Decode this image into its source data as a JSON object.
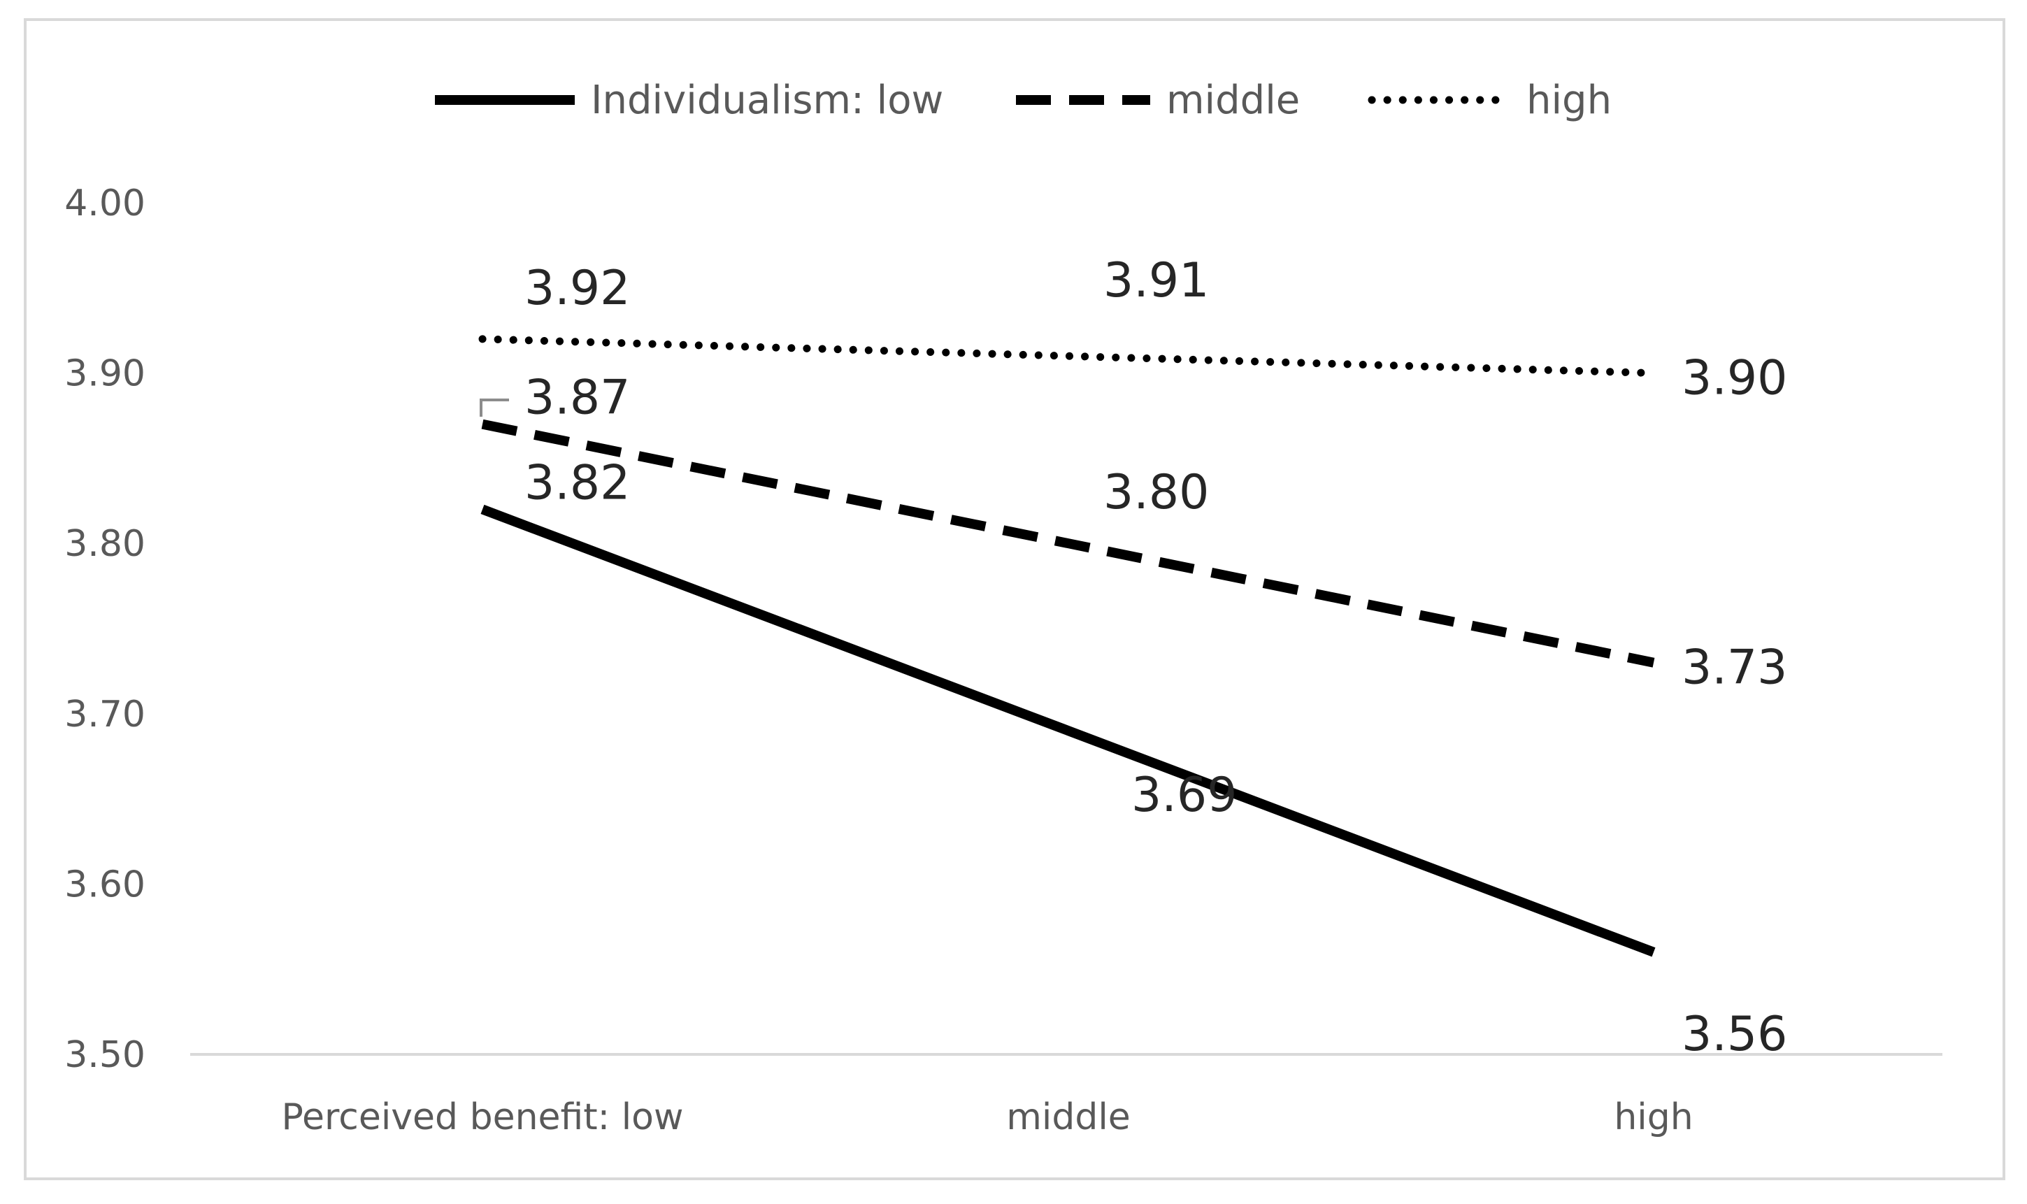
{
  "chart_data": {
    "type": "line",
    "categories": [
      "Perceived benefit: low",
      "middle",
      "high"
    ],
    "series": [
      {
        "name": "Individualism: low",
        "values": [
          3.82,
          3.69,
          3.56
        ],
        "labels": [
          "3.82",
          "3.69",
          "3.56"
        ],
        "style": "solid"
      },
      {
        "name": "middle",
        "values": [
          3.87,
          3.8,
          3.73
        ],
        "labels": [
          "3.87",
          "3.80",
          "3.73"
        ],
        "style": "dashed"
      },
      {
        "name": "high",
        "values": [
          3.92,
          3.91,
          3.9
        ],
        "labels": [
          "3.92",
          "3.91",
          "3.90"
        ],
        "style": "dotted"
      }
    ],
    "yticks": [
      "4.00",
      "3.90",
      "3.80",
      "3.70",
      "3.60",
      "3.50"
    ],
    "ylim": [
      3.5,
      4.0
    ],
    "grid": false,
    "legend_position": "top",
    "colors": {
      "line": "#000000",
      "axis": "#d9d9d9",
      "text": "#595959",
      "border": "#d9d9d9"
    }
  }
}
